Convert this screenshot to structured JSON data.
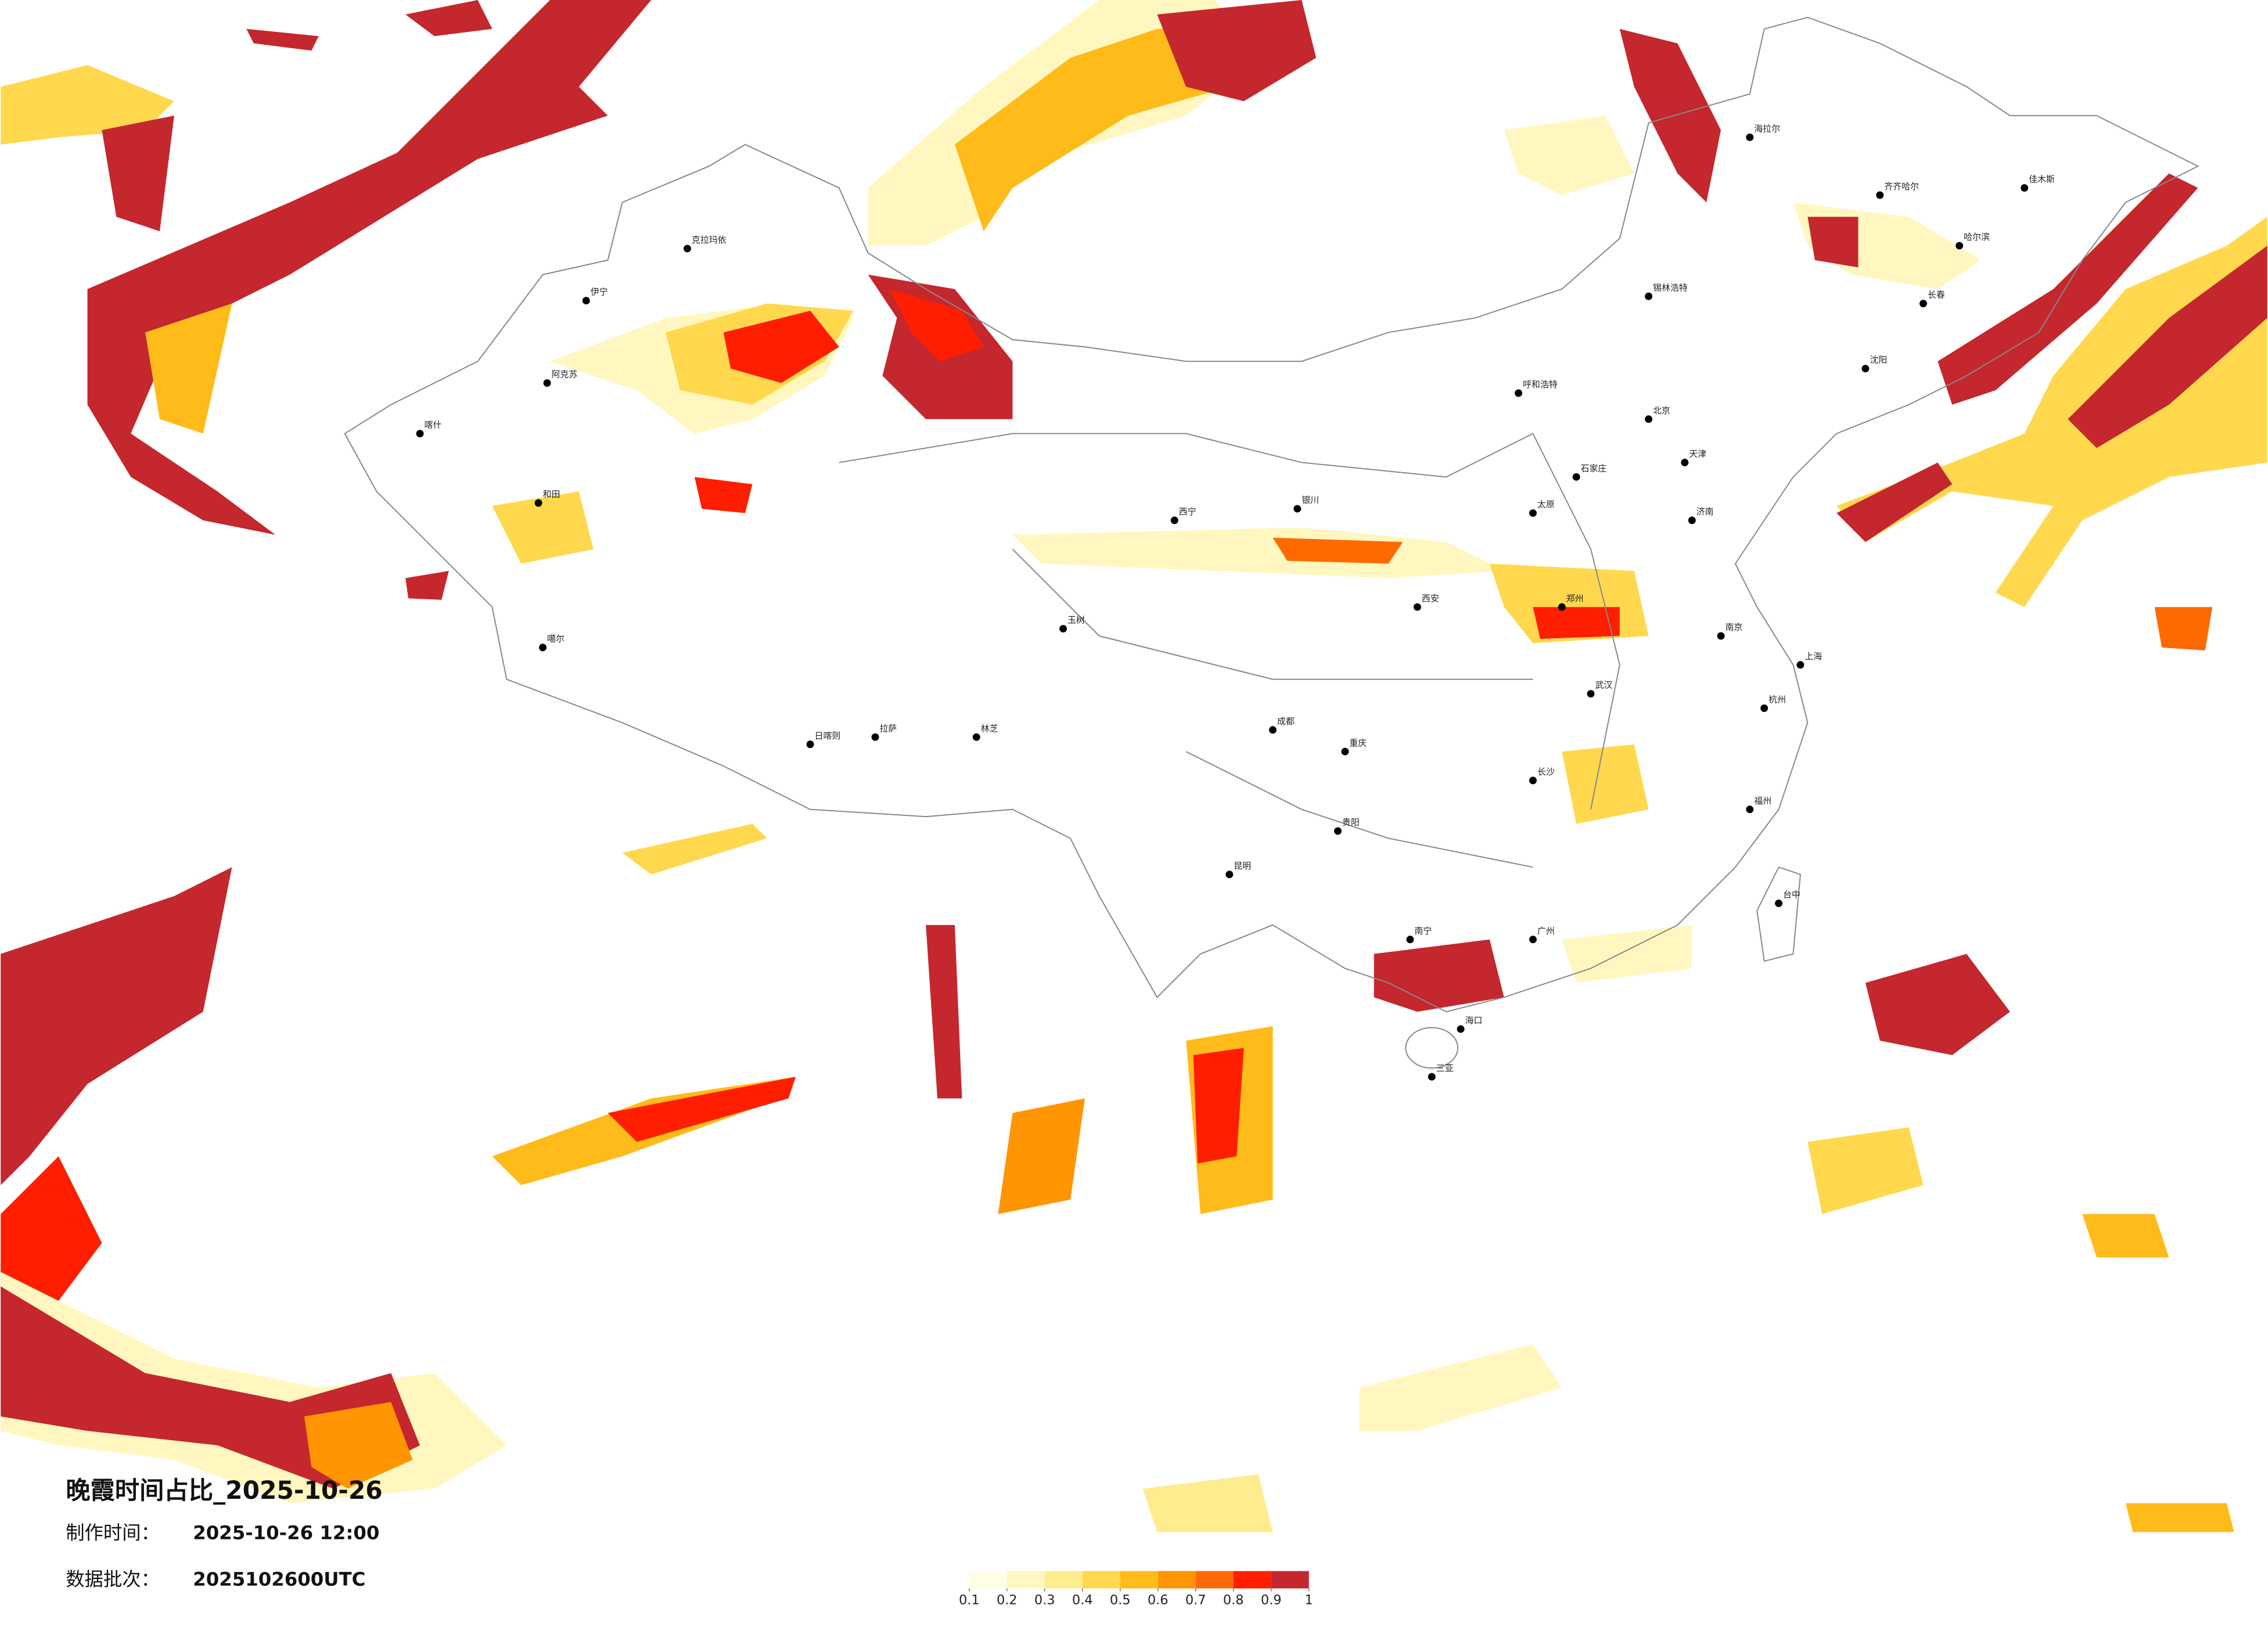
{
  "title": "晚霞时间占比_2025-10-26",
  "info": [
    {
      "label": "制作时间：",
      "value": "2025-10-26 12:00"
    },
    {
      "label": "数据批次：",
      "value": "2025102600UTC"
    }
  ],
  "colorbar": {
    "ticks": [
      0.1,
      0.2,
      0.3,
      0.4,
      0.5,
      0.6,
      0.7,
      0.8,
      0.9,
      1
    ],
    "colors": [
      "#fffde6",
      "#fff7bf",
      "#ffec8c",
      "#ffd84d",
      "#ffbb1a",
      "#ff9500",
      "#ff6a00",
      "#ff1e00",
      "#c4272d"
    ]
  },
  "cities": [
    "克拉玛依",
    "伊宁",
    "阿克苏",
    "喀什",
    "和田",
    "噶尔",
    "日喀则",
    "拉萨",
    "林芝",
    "玉树",
    "西宁",
    "银川",
    "呼和浩特",
    "北京",
    "天津",
    "石家庄",
    "太原",
    "济南",
    "郑州",
    "西安",
    "成都",
    "重庆",
    "贵阳",
    "昆明",
    "南宁",
    "广州",
    "长沙",
    "武汉",
    "南京",
    "上海",
    "杭州",
    "福州",
    "台中",
    "海口",
    "三亚",
    "哈尔滨",
    "长春",
    "沈阳",
    "齐齐哈尔",
    "海拉尔",
    "锡林浩特",
    "佳木斯"
  ]
}
